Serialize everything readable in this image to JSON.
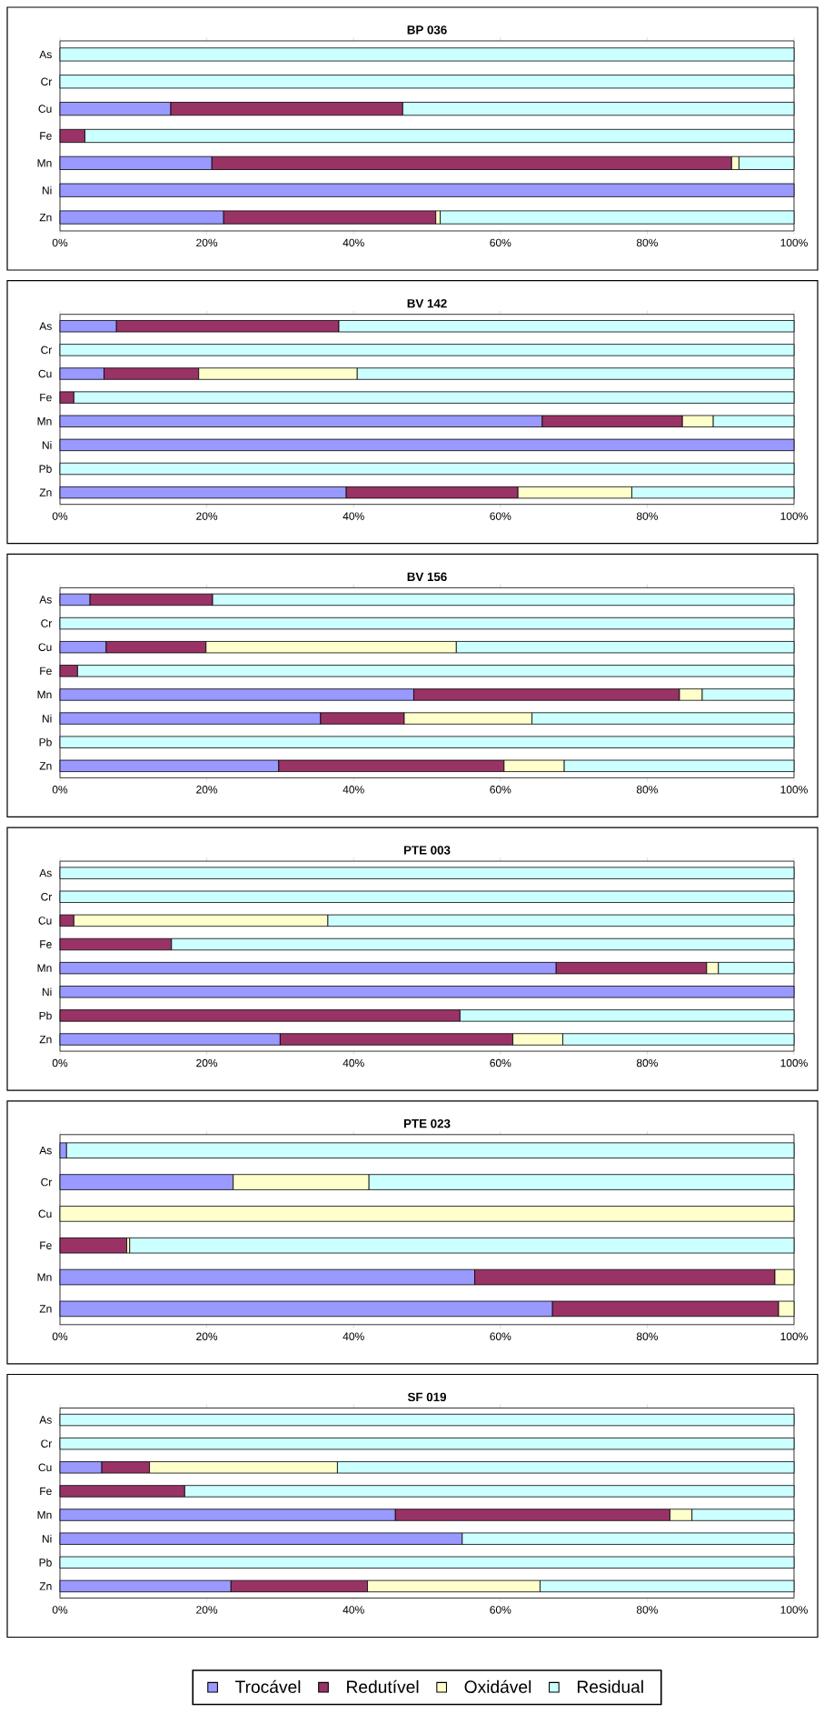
{
  "chart_data": [
    {
      "type": "bar",
      "orientation": "horizontal",
      "stacked": true,
      "title": "BP 036",
      "categories": [
        "As",
        "Cr",
        "Cu",
        "Fe",
        "Mn",
        "Ni",
        "Zn"
      ],
      "xlim": [
        0,
        100
      ],
      "xticks": [
        {
          "value": 0,
          "label": "0%"
        },
        {
          "value": 20,
          "label": "20%"
        },
        {
          "value": 40,
          "label": "40%"
        },
        {
          "value": 60,
          "label": "60%"
        },
        {
          "value": 80,
          "label": "80%"
        },
        {
          "value": 100,
          "label": "100%"
        }
      ],
      "series": [
        {
          "color": "#9999ff",
          "values": [
            0,
            0,
            15.1,
            0,
            20.7,
            100,
            22.3
          ]
        },
        {
          "color": "#993366",
          "values": [
            0,
            0,
            31.6,
            3.4,
            70.8,
            0,
            28.9
          ]
        },
        {
          "color": "#ffffcc",
          "values": [
            0,
            0,
            0,
            0,
            1.0,
            0,
            0.6
          ]
        },
        {
          "color": "#ccffff",
          "values": [
            100,
            100,
            53.3,
            96.6,
            7.5,
            0,
            48.2
          ]
        }
      ]
    },
    {
      "type": "bar",
      "orientation": "horizontal",
      "stacked": true,
      "title": "BV 142",
      "categories": [
        "As",
        "Cr",
        "Cu",
        "Fe",
        "Mn",
        "Ni",
        "Pb",
        "Zn"
      ],
      "xlim": [
        0,
        100
      ],
      "xticks": [
        {
          "value": 0,
          "label": "0%"
        },
        {
          "value": 20,
          "label": "20%"
        },
        {
          "value": 40,
          "label": "40%"
        },
        {
          "value": 60,
          "label": "60%"
        },
        {
          "value": 80,
          "label": "80%"
        },
        {
          "value": 100,
          "label": "100%"
        }
      ],
      "series": [
        {
          "color": "#9999ff",
          "values": [
            7.7,
            0,
            6.0,
            0,
            65.7,
            100,
            0,
            39.0
          ]
        },
        {
          "color": "#993366",
          "values": [
            30.3,
            0,
            12.9,
            1.9,
            19.1,
            0,
            0,
            23.4
          ]
        },
        {
          "color": "#ffffcc",
          "values": [
            0,
            0,
            21.6,
            0,
            4.2,
            0,
            0,
            15.5
          ]
        },
        {
          "color": "#ccffff",
          "values": [
            62.0,
            100,
            59.5,
            98.1,
            11.0,
            0,
            100,
            22.1
          ]
        }
      ]
    },
    {
      "type": "bar",
      "orientation": "horizontal",
      "stacked": true,
      "title": "BV 156",
      "categories": [
        "As",
        "Cr",
        "Cu",
        "Fe",
        "Mn",
        "Ni",
        "Pb",
        "Zn"
      ],
      "xlim": [
        0,
        100
      ],
      "xticks": [
        {
          "value": 0,
          "label": "0%"
        },
        {
          "value": 20,
          "label": "20%"
        },
        {
          "value": 40,
          "label": "40%"
        },
        {
          "value": 60,
          "label": "60%"
        },
        {
          "value": 80,
          "label": "80%"
        },
        {
          "value": 100,
          "label": "100%"
        }
      ],
      "series": [
        {
          "color": "#9999ff",
          "values": [
            4.1,
            0,
            6.3,
            0,
            48.2,
            35.5,
            0,
            29.8
          ]
        },
        {
          "color": "#993366",
          "values": [
            16.7,
            0,
            13.6,
            2.4,
            36.2,
            11.4,
            0,
            30.7
          ]
        },
        {
          "color": "#ffffcc",
          "values": [
            0,
            0,
            34.1,
            0,
            3.1,
            17.4,
            0,
            8.2
          ]
        },
        {
          "color": "#ccffff",
          "values": [
            79.2,
            100,
            46.0,
            97.6,
            12.5,
            35.7,
            100,
            31.3
          ]
        }
      ]
    },
    {
      "type": "bar",
      "orientation": "horizontal",
      "stacked": true,
      "title": "PTE 003",
      "categories": [
        "As",
        "Cr",
        "Cu",
        "Fe",
        "Mn",
        "Ni",
        "Pb",
        "Zn"
      ],
      "xlim": [
        0,
        100
      ],
      "xticks": [
        {
          "value": 0,
          "label": "0%"
        },
        {
          "value": 20,
          "label": "20%"
        },
        {
          "value": 40,
          "label": "40%"
        },
        {
          "value": 60,
          "label": "60%"
        },
        {
          "value": 80,
          "label": "80%"
        },
        {
          "value": 100,
          "label": "100%"
        }
      ],
      "series": [
        {
          "color": "#9999ff",
          "values": [
            0,
            0,
            0,
            0,
            67.6,
            100,
            0,
            30.0
          ]
        },
        {
          "color": "#993366",
          "values": [
            0,
            0,
            1.9,
            15.2,
            20.5,
            0,
            54.5,
            31.7
          ]
        },
        {
          "color": "#ffffcc",
          "values": [
            0,
            0,
            34.6,
            0,
            1.6,
            0,
            0,
            6.8
          ]
        },
        {
          "color": "#ccffff",
          "values": [
            100,
            100,
            63.5,
            84.8,
            10.3,
            0,
            45.5,
            31.5
          ]
        }
      ]
    },
    {
      "type": "bar",
      "orientation": "horizontal",
      "stacked": true,
      "title": "PTE 023",
      "categories": [
        "As",
        "Cr",
        "Cu",
        "Fe",
        "Mn",
        "Zn"
      ],
      "xlim": [
        0,
        100
      ],
      "xticks": [
        {
          "value": 0,
          "label": "0%"
        },
        {
          "value": 20,
          "label": "20%"
        },
        {
          "value": 40,
          "label": "40%"
        },
        {
          "value": 60,
          "label": "60%"
        },
        {
          "value": 80,
          "label": "80%"
        },
        {
          "value": 100,
          "label": "100%"
        }
      ],
      "series": [
        {
          "color": "#9999ff",
          "values": [
            0.9,
            23.6,
            0,
            0,
            56.5,
            67.1
          ]
        },
        {
          "color": "#993366",
          "values": [
            0,
            0,
            0,
            9.1,
            40.9,
            30.8
          ]
        },
        {
          "color": "#ffffcc",
          "values": [
            0,
            18.5,
            100,
            0.4,
            2.6,
            2.1
          ]
        },
        {
          "color": "#ccffff",
          "values": [
            99.1,
            57.9,
            0,
            90.5,
            0,
            0
          ]
        }
      ]
    },
    {
      "type": "bar",
      "orientation": "horizontal",
      "stacked": true,
      "title": "SF 019",
      "categories": [
        "As",
        "Cr",
        "Cu",
        "Fe",
        "Mn",
        "Ni",
        "Pb",
        "Zn"
      ],
      "xlim": [
        0,
        100
      ],
      "xticks": [
        {
          "value": 0,
          "label": "0%"
        },
        {
          "value": 20,
          "label": "20%"
        },
        {
          "value": 40,
          "label": "40%"
        },
        {
          "value": 60,
          "label": "60%"
        },
        {
          "value": 80,
          "label": "80%"
        },
        {
          "value": 100,
          "label": "100%"
        }
      ],
      "legend": "bottom",
      "series": [
        {
          "name": "Trocável",
          "color": "#9999ff",
          "values": [
            0,
            0,
            5.7,
            0,
            45.7,
            54.8,
            0,
            23.3
          ]
        },
        {
          "name": "Redutível",
          "color": "#993366",
          "values": [
            0,
            0,
            6.5,
            17.0,
            37.4,
            0,
            0,
            18.6
          ]
        },
        {
          "name": "Oxidável",
          "color": "#ffffcc",
          "values": [
            0,
            0,
            25.6,
            0,
            3.0,
            0,
            0,
            23.5
          ]
        },
        {
          "name": "Residual",
          "color": "#ccffff",
          "values": [
            100,
            100,
            62.2,
            83.0,
            13.9,
            45.2,
            100,
            34.6
          ]
        }
      ]
    }
  ]
}
